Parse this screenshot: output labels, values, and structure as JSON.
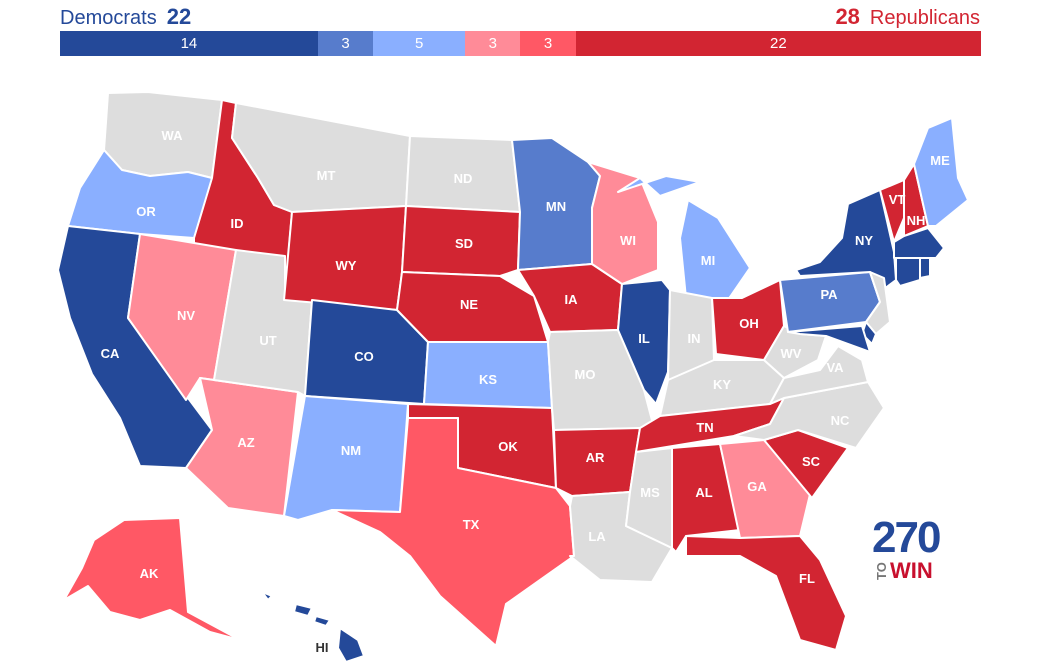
{
  "header": {
    "dem_label": "Democrats",
    "dem_total": "22",
    "rep_total": "28",
    "rep_label": "Republicans"
  },
  "colors": {
    "safe_d": "#244999",
    "likely_d": "#577ccc",
    "lean_d": "#8aafff",
    "lean_r": "#ff8b98",
    "likely_r": "#ff5865",
    "safe_r": "#d22532",
    "no_race": "#dddddd",
    "dark_text": "#333333"
  },
  "bar": [
    {
      "value": 14,
      "label": "14",
      "cat": "safe_d"
    },
    {
      "value": 3,
      "label": "3",
      "cat": "likely_d"
    },
    {
      "value": 5,
      "label": "5",
      "cat": "lean_d"
    },
    {
      "value": 3,
      "label": "3",
      "cat": "lean_r"
    },
    {
      "value": 3,
      "label": "3",
      "cat": "likely_r"
    },
    {
      "value": 22,
      "label": "22",
      "cat": "safe_r"
    }
  ],
  "states": [
    {
      "abbr": "WA",
      "cat": "no_race"
    },
    {
      "abbr": "OR",
      "cat": "lean_d"
    },
    {
      "abbr": "CA",
      "cat": "safe_d"
    },
    {
      "abbr": "ID",
      "cat": "safe_r"
    },
    {
      "abbr": "NV",
      "cat": "lean_r"
    },
    {
      "abbr": "AZ",
      "cat": "lean_r"
    },
    {
      "abbr": "UT",
      "cat": "no_race"
    },
    {
      "abbr": "MT",
      "cat": "no_race"
    },
    {
      "abbr": "WY",
      "cat": "safe_r"
    },
    {
      "abbr": "CO",
      "cat": "safe_d"
    },
    {
      "abbr": "NM",
      "cat": "lean_d"
    },
    {
      "abbr": "ND",
      "cat": "no_race"
    },
    {
      "abbr": "SD",
      "cat": "safe_r"
    },
    {
      "abbr": "NE",
      "cat": "safe_r"
    },
    {
      "abbr": "KS",
      "cat": "lean_d"
    },
    {
      "abbr": "OK",
      "cat": "safe_r"
    },
    {
      "abbr": "TX",
      "cat": "likely_r"
    },
    {
      "abbr": "MN",
      "cat": "likely_d"
    },
    {
      "abbr": "IA",
      "cat": "safe_r"
    },
    {
      "abbr": "MO",
      "cat": "no_race"
    },
    {
      "abbr": "AR",
      "cat": "safe_r"
    },
    {
      "abbr": "LA",
      "cat": "no_race"
    },
    {
      "abbr": "WI",
      "cat": "lean_r"
    },
    {
      "abbr": "IL",
      "cat": "safe_d"
    },
    {
      "abbr": "MI",
      "cat": "lean_d"
    },
    {
      "abbr": "IN",
      "cat": "no_race"
    },
    {
      "abbr": "OH",
      "cat": "safe_r"
    },
    {
      "abbr": "KY",
      "cat": "no_race"
    },
    {
      "abbr": "TN",
      "cat": "safe_r"
    },
    {
      "abbr": "MS",
      "cat": "no_race"
    },
    {
      "abbr": "AL",
      "cat": "safe_r"
    },
    {
      "abbr": "GA",
      "cat": "lean_r"
    },
    {
      "abbr": "FL",
      "cat": "safe_r"
    },
    {
      "abbr": "SC",
      "cat": "safe_r"
    },
    {
      "abbr": "NC",
      "cat": "no_race"
    },
    {
      "abbr": "VA",
      "cat": "no_race"
    },
    {
      "abbr": "WV",
      "cat": "no_race"
    },
    {
      "abbr": "PA",
      "cat": "likely_d"
    },
    {
      "abbr": "NY",
      "cat": "safe_d"
    },
    {
      "abbr": "VT",
      "cat": "safe_r"
    },
    {
      "abbr": "NH",
      "cat": "safe_r"
    },
    {
      "abbr": "ME",
      "cat": "lean_d"
    },
    {
      "abbr": "MA",
      "cat": "safe_d"
    },
    {
      "abbr": "CT",
      "cat": "safe_d"
    },
    {
      "abbr": "RI",
      "cat": "safe_d"
    },
    {
      "abbr": "NJ",
      "cat": "no_race"
    },
    {
      "abbr": "DE",
      "cat": "safe_d"
    },
    {
      "abbr": "MD",
      "cat": "safe_d"
    },
    {
      "abbr": "AK",
      "cat": "likely_r"
    },
    {
      "abbr": "HI",
      "cat": "safe_d"
    }
  ],
  "logo": {
    "number": "270",
    "to": "TO",
    "win": "WIN"
  }
}
